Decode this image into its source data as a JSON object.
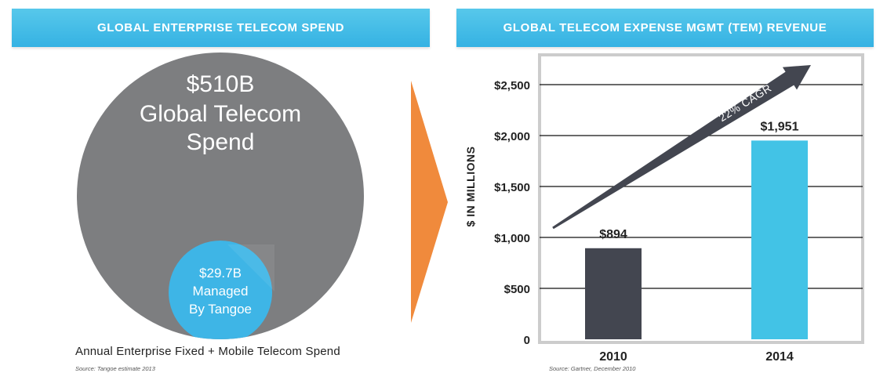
{
  "left_panel": {
    "header": "GLOBAL ENTERPRISE TELECOM SPEND",
    "big_value": "$510B",
    "big_label_line1": "Global Telecom",
    "big_label_line2": "Spend",
    "small_value": "$29.7B",
    "small_label_line1": "Managed",
    "small_label_line2": "By Tangoe",
    "caption": "Annual Enterprise Fixed + Mobile Telecom Spend",
    "source": "Source: Tangoe estimate 2013"
  },
  "right_panel": {
    "header": "GLOBAL TELECOM EXPENSE MGMT (TEM) REVENUE",
    "source": "Source: Gartner, December 2010"
  },
  "colors": {
    "header_blue": "#3fbbe6",
    "gray_circle": "#7d7e80",
    "blue_circle": "#3eb5e6",
    "orange_arrow": "#f08a3c",
    "bar_2010": "#434650",
    "bar_2014": "#42c3e6",
    "growth_arrow": "#434650",
    "chart_border": "#cccccc"
  },
  "chart_data": [
    {
      "type": "pie",
      "title": "GLOBAL ENTERPRISE TELECOM SPEND",
      "categories": [
        "Global Telecom Spend",
        "Managed By Tangoe"
      ],
      "values": [
        510,
        29.7
      ],
      "value_labels": [
        "$510B",
        "$29.7B"
      ],
      "unit": "$B",
      "caption": "Annual Enterprise Fixed + Mobile Telecom Spend"
    },
    {
      "type": "bar",
      "title": "GLOBAL TELECOM EXPENSE MGMT (TEM) REVENUE",
      "categories": [
        "2010",
        "2014"
      ],
      "values": [
        894,
        1951
      ],
      "data_labels": [
        "$894",
        "$1,951"
      ],
      "xlabel": "",
      "ylabel": "$ IN MILLIONS",
      "ylim": [
        0,
        2700
      ],
      "yticks": [
        0,
        500,
        1000,
        1500,
        2000,
        2500
      ],
      "ytick_labels": [
        "0",
        "$500",
        "$1,000",
        "$1,500",
        "$2,000",
        "$2,500"
      ],
      "grid": true,
      "annotation": "22% CAGR"
    }
  ]
}
